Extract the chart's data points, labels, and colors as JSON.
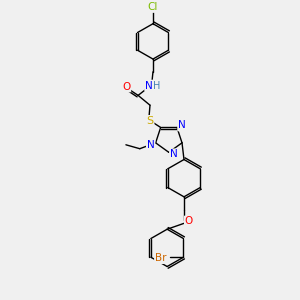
{
  "bg_color": "#f0f0f0",
  "bond_color": "#000000",
  "atom_colors": {
    "Cl": "#7cbb00",
    "N": "#0000ff",
    "H": "#4682b4",
    "O": "#ff0000",
    "S": "#ccaa00",
    "Br": "#cc6600"
  },
  "figsize": [
    3.0,
    3.0
  ],
  "dpi": 100
}
